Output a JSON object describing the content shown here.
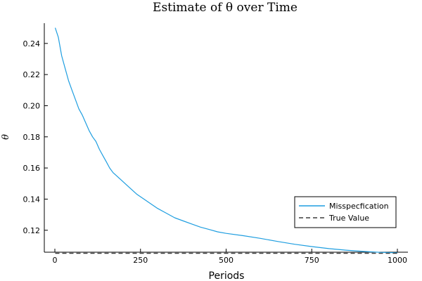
{
  "chart_data": {
    "type": "line",
    "title": "Estimate of θ over Time",
    "xlabel": "Periods",
    "ylabel": "θ",
    "xlim": [
      0,
      1000
    ],
    "ylim": [
      0.105,
      0.253
    ],
    "x_ticks": [
      0,
      250,
      500,
      750,
      1000
    ],
    "y_ticks": [
      0.12,
      0.14,
      0.16,
      0.18,
      0.2,
      0.22,
      0.24
    ],
    "y_tick_labels": [
      "0.12",
      "0.14",
      "0.16",
      "0.18",
      "0.20",
      "0.22",
      "0.24"
    ],
    "grid": false,
    "legend_position": "bottom-right",
    "series": [
      {
        "name": "Misspecfication",
        "style": "solid",
        "color": "#1f9ee0",
        "x": [
          1,
          10,
          20,
          30,
          40,
          50,
          60,
          70,
          80,
          90,
          100,
          110,
          120,
          130,
          140,
          150,
          160,
          170,
          180,
          190,
          200,
          220,
          240,
          260,
          280,
          300,
          325,
          350,
          375,
          400,
          425,
          450,
          475,
          500,
          550,
          600,
          650,
          700,
          750,
          800,
          850,
          900,
          950,
          1000
        ],
        "values": [
          0.25,
          0.244,
          0.232,
          0.224,
          0.216,
          0.21,
          0.204,
          0.198,
          0.194,
          0.189,
          0.184,
          0.18,
          0.177,
          0.172,
          0.168,
          0.164,
          0.16,
          0.157,
          0.155,
          0.153,
          0.151,
          0.147,
          0.143,
          0.14,
          0.137,
          0.134,
          0.131,
          0.128,
          0.126,
          0.124,
          0.122,
          0.1205,
          0.119,
          0.118,
          0.1165,
          0.1148,
          0.1128,
          0.111,
          0.1095,
          0.1082,
          0.1072,
          0.1064,
          0.1058,
          0.1055
        ]
      },
      {
        "name": "True Value",
        "style": "dashed",
        "color": "#3d3d3d",
        "x": [
          1,
          1000
        ],
        "values": [
          0.1052,
          0.1052
        ]
      }
    ]
  }
}
